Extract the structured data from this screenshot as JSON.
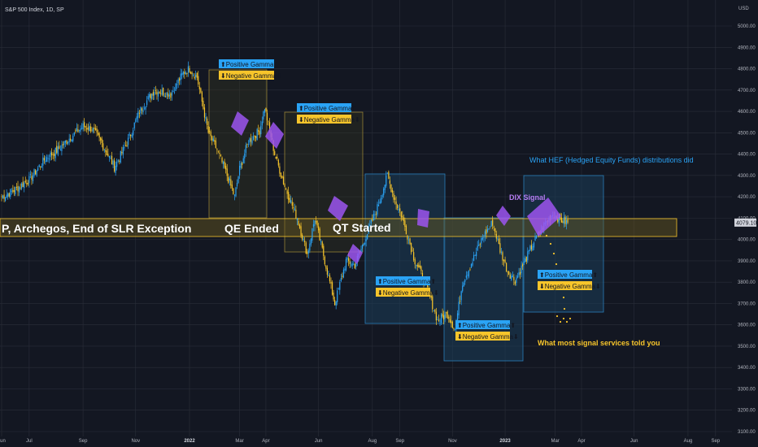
{
  "chart_title": "S&P 500 Index, 1D, SP",
  "currency": "USD",
  "price_axis": {
    "ticks": [
      3100,
      3200,
      3300,
      3400,
      3500,
      3600,
      3700,
      3800,
      3900,
      4000,
      4100,
      4200,
      4300,
      4400,
      4500,
      4600,
      4700,
      4800,
      4900,
      5000
    ],
    "tick_labels": [
      "3100.00",
      "3200.00",
      "3300.00",
      "3400.00",
      "3500.00",
      "3600.00",
      "3700.00",
      "3800.00",
      "3900.00",
      "4000.00",
      "4100.00",
      "4200.00",
      "4300.00",
      "4400.00",
      "4500.00",
      "4600.00",
      "4700.00",
      "4800.00",
      "4900.00",
      "5000.00"
    ],
    "current_price_label": "4079.10",
    "current_price": 4079.1
  },
  "time_axis": {
    "labels": [
      {
        "text": "Jun",
        "major": false,
        "i": 0
      },
      {
        "text": "Jul",
        "major": false,
        "i": 22
      },
      {
        "text": "Sep",
        "major": false,
        "i": 65
      },
      {
        "text": "Nov",
        "major": false,
        "i": 107
      },
      {
        "text": "2022",
        "major": true,
        "i": 150
      },
      {
        "text": "Mar",
        "major": false,
        "i": 190
      },
      {
        "text": "Apr",
        "major": false,
        "i": 211
      },
      {
        "text": "Jun",
        "major": false,
        "i": 253
      },
      {
        "text": "Aug",
        "major": false,
        "i": 296
      },
      {
        "text": "Sep",
        "major": false,
        "i": 318
      },
      {
        "text": "Nov",
        "major": false,
        "i": 360
      },
      {
        "text": "2023",
        "major": true,
        "i": 402
      },
      {
        "text": "Mar",
        "major": false,
        "i": 442
      },
      {
        "text": "Apr",
        "major": false,
        "i": 463
      },
      {
        "text": "Jun",
        "major": false,
        "i": 505
      },
      {
        "text": "Aug",
        "major": false,
        "i": 548
      },
      {
        "text": "Sep",
        "major": false,
        "i": 570
      }
    ],
    "first_index_x_frac": 0.0,
    "total_slots": 582
  },
  "annotations": {
    "left_band_text": "P, Archegos, End of SLR Exception",
    "qe_ended": "QE Ended",
    "qt_started": "QT Started",
    "hef_text": "What HEF (Hedged Equity Funds) distributions did",
    "dix_signal": "DIX Signal",
    "signal_services": "What most signal services told you",
    "positive_gamma": "⬆Positive Gamma⬆",
    "negative_gamma": "⬇Negative Gamma⬇"
  },
  "chart_data": {
    "type": "candlestick",
    "title": "S&P 500 Index, 1D, SP",
    "ylim": [
      3100,
      5000
    ],
    "anchors": [
      [
        0,
        4200
      ],
      [
        10,
        4230
      ],
      [
        22,
        4280
      ],
      [
        35,
        4380
      ],
      [
        45,
        4420
      ],
      [
        55,
        4480
      ],
      [
        65,
        4530
      ],
      [
        72,
        4520
      ],
      [
        80,
        4450
      ],
      [
        90,
        4340
      ],
      [
        100,
        4450
      ],
      [
        110,
        4600
      ],
      [
        122,
        4700
      ],
      [
        135,
        4680
      ],
      [
        145,
        4780
      ],
      [
        150,
        4800
      ],
      [
        156,
        4760
      ],
      [
        165,
        4500
      ],
      [
        172,
        4420
      ],
      [
        180,
        4300
      ],
      [
        186,
        4200
      ],
      [
        190,
        4330
      ],
      [
        197,
        4460
      ],
      [
        206,
        4510
      ],
      [
        210,
        4620
      ],
      [
        218,
        4400
      ],
      [
        226,
        4250
      ],
      [
        236,
        4100
      ],
      [
        244,
        3930
      ],
      [
        250,
        4100
      ],
      [
        258,
        3900
      ],
      [
        266,
        3700
      ],
      [
        275,
        3900
      ],
      [
        282,
        3880
      ],
      [
        290,
        4000
      ],
      [
        300,
        4150
      ],
      [
        308,
        4300
      ],
      [
        313,
        4200
      ],
      [
        320,
        4100
      ],
      [
        330,
        3900
      ],
      [
        338,
        3800
      ],
      [
        348,
        3620
      ],
      [
        356,
        3650
      ],
      [
        362,
        3580
      ],
      [
        368,
        3800
      ],
      [
        376,
        3900
      ],
      [
        384,
        4010
      ],
      [
        392,
        4080
      ],
      [
        398,
        3950
      ],
      [
        404,
        3850
      ],
      [
        410,
        3810
      ],
      [
        418,
        3900
      ],
      [
        425,
        3990
      ],
      [
        432,
        4060
      ],
      [
        440,
        4120
      ],
      [
        447,
        4090
      ],
      [
        452,
        4079
      ]
    ],
    "series_name": "S&P 500 Index"
  },
  "colors": {
    "background": "#131722",
    "candle_up": "#2aa3f5",
    "candle_down": "#f7c52b",
    "grid": "#2a2e39",
    "band_yellow": "#f7c52b",
    "box_blue": "#2aa3f5",
    "purple": "#9c55f0"
  }
}
